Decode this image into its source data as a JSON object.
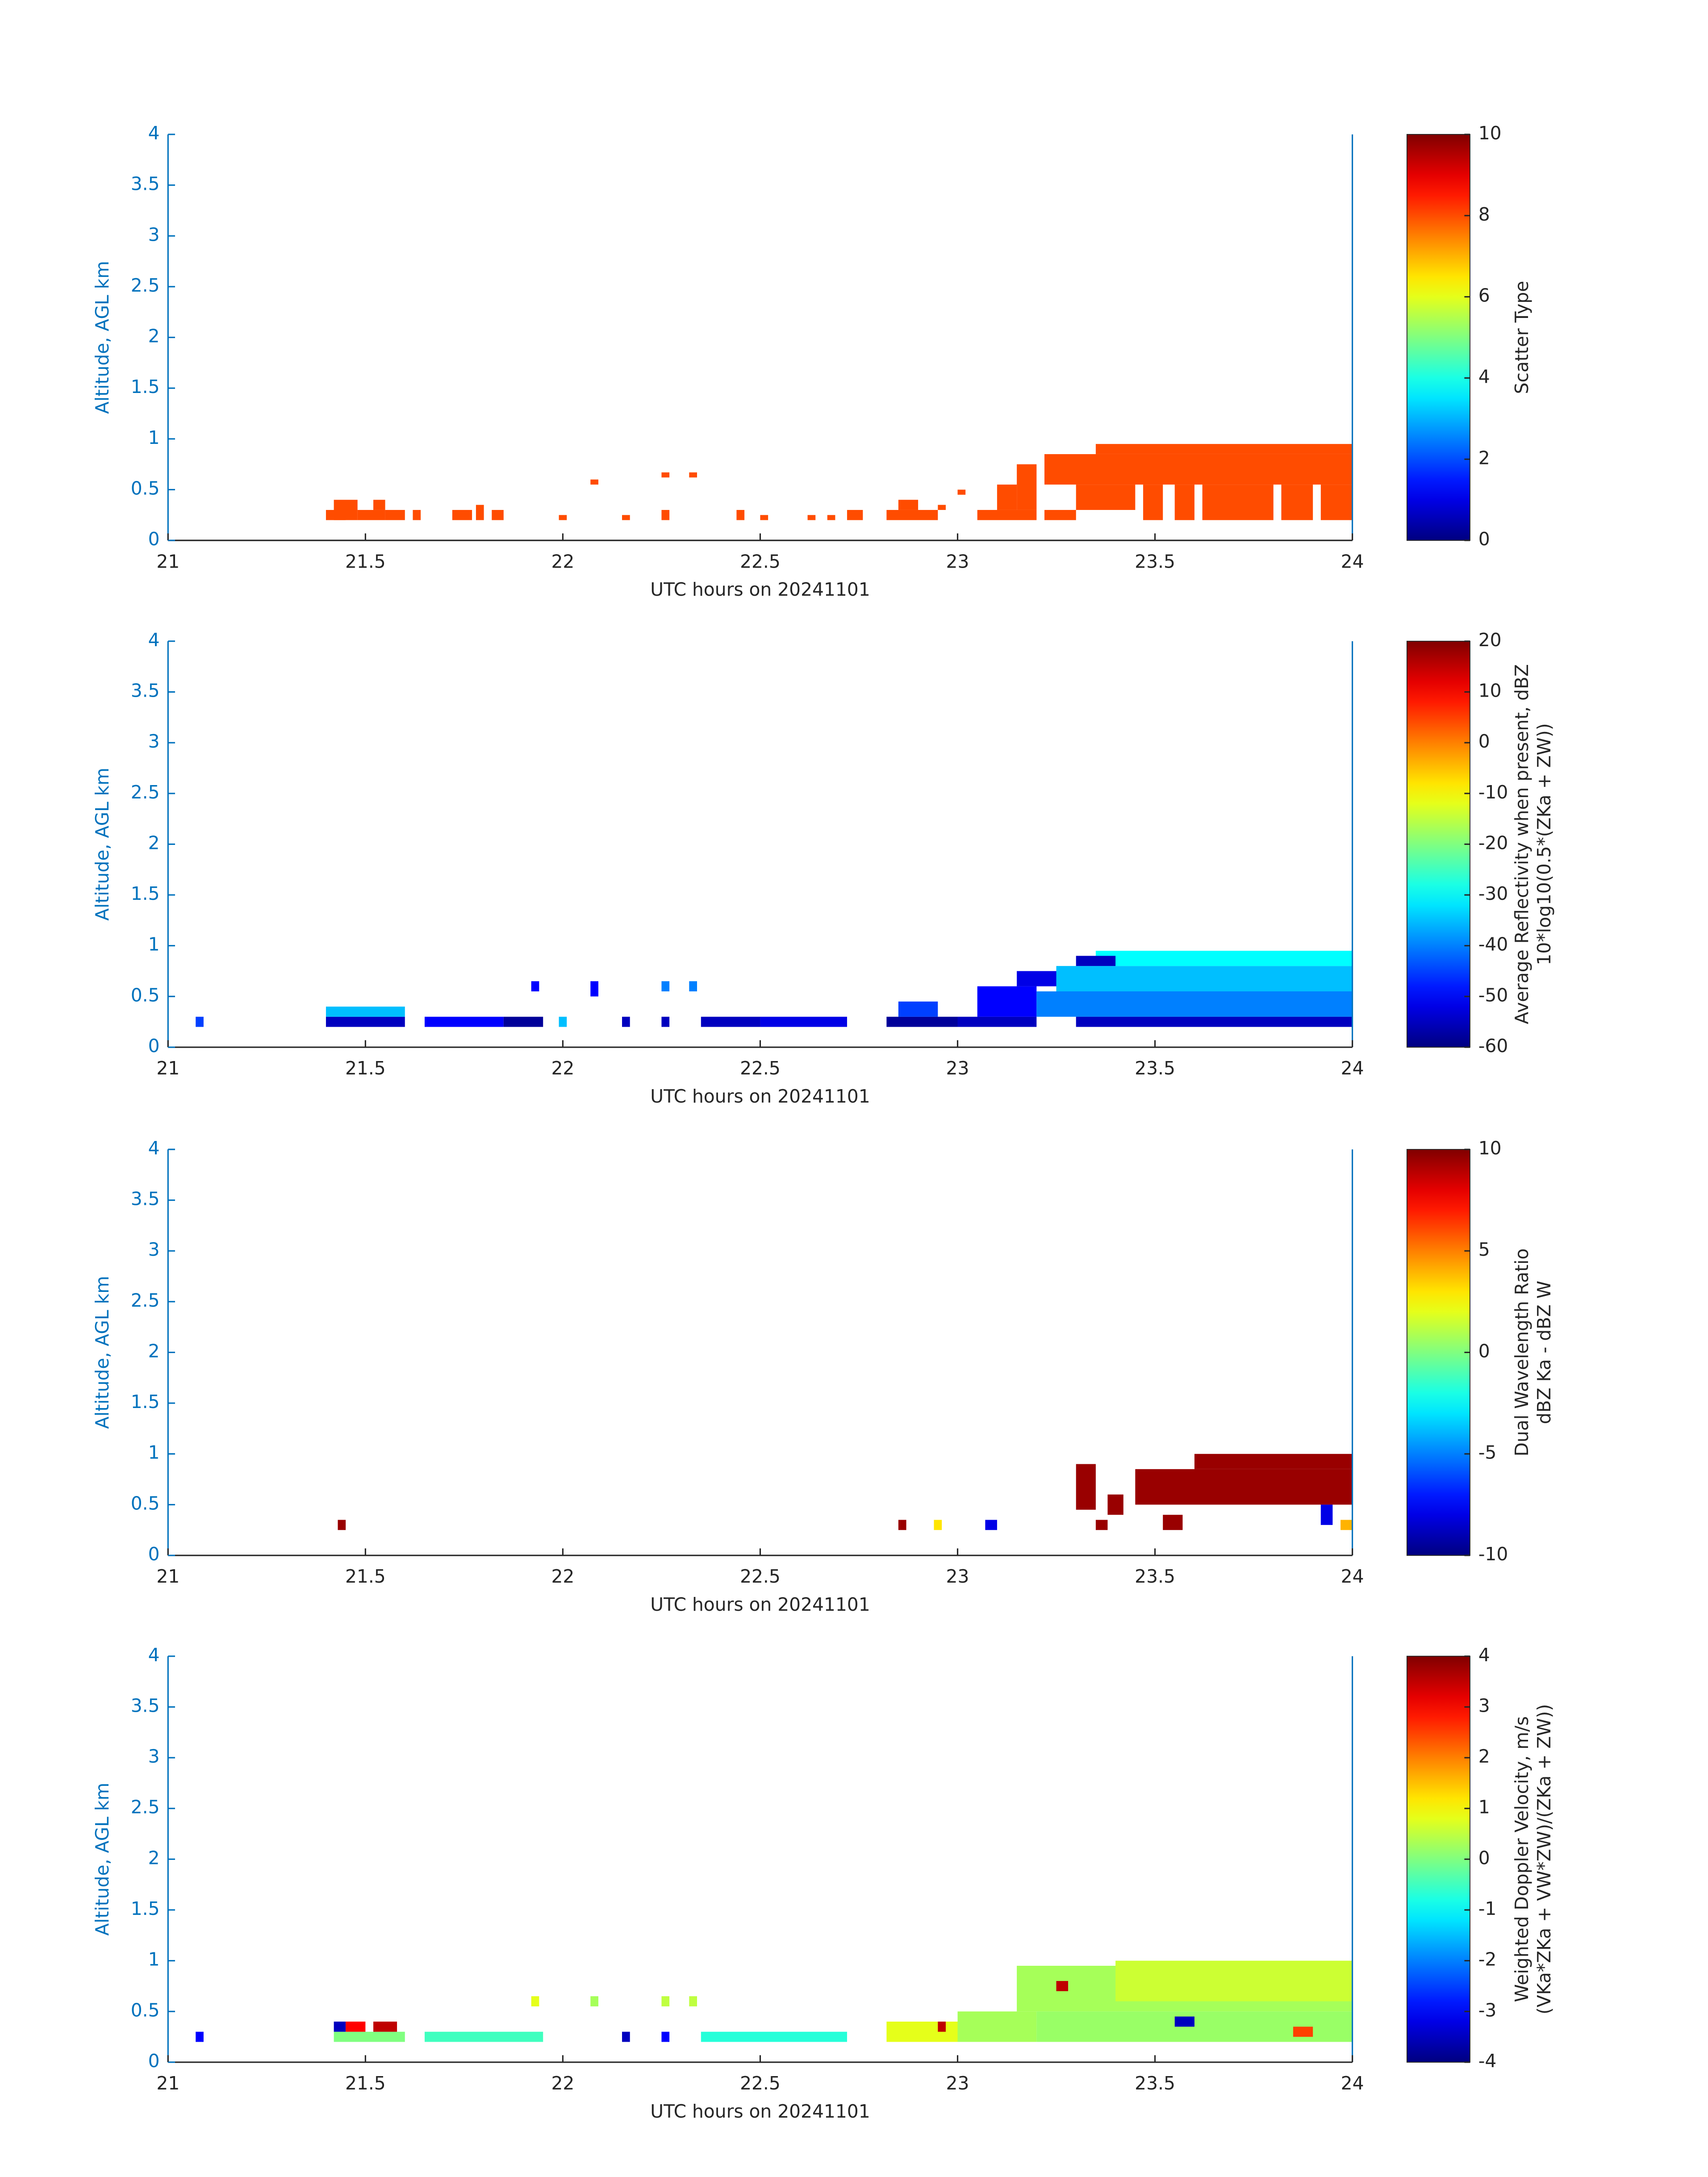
{
  "chart_data": [
    {
      "type": "heatmap",
      "colormap": "jet",
      "xlabel": "UTC hours on 20241101",
      "ylabel": "Altitude, AGL km",
      "xlim": [
        21,
        24
      ],
      "xticks": [
        21,
        21.5,
        22,
        22.5,
        23,
        23.5,
        24
      ],
      "ylim": [
        0,
        4
      ],
      "yticks": [
        0,
        0.5,
        1,
        1.5,
        2,
        2.5,
        3,
        3.5,
        4
      ],
      "clim": [
        0,
        10
      ],
      "cticks": [
        0,
        2,
        4,
        6,
        8,
        10
      ],
      "clabel": [
        "Scatter Type"
      ],
      "x": [
        [
          21.4,
          21.45
        ],
        [
          21.42,
          21.48
        ],
        [
          21.48,
          21.55
        ],
        [
          21.52,
          21.55
        ],
        [
          21.55,
          21.6
        ],
        [
          21.62,
          21.64
        ],
        [
          21.72,
          21.77
        ],
        [
          21.78,
          21.8
        ],
        [
          21.82,
          21.85
        ],
        [
          21.99,
          22.01
        ],
        [
          22.07,
          22.09
        ],
        [
          22.15,
          22.17
        ],
        [
          22.25,
          22.27
        ],
        [
          22.25,
          22.27
        ],
        [
          22.32,
          22.34
        ],
        [
          22.44,
          22.46
        ],
        [
          22.5,
          22.52
        ],
        [
          22.62,
          22.64
        ],
        [
          22.67,
          22.69
        ],
        [
          22.72,
          22.76
        ],
        [
          22.82,
          22.95
        ],
        [
          22.85,
          22.9
        ],
        [
          22.95,
          22.97
        ],
        [
          23.0,
          23.02
        ],
        [
          23.05,
          23.2
        ],
        [
          23.1,
          23.15
        ],
        [
          23.15,
          23.2
        ],
        [
          23.22,
          23.3
        ],
        [
          23.22,
          24
        ],
        [
          23.35,
          24
        ],
        [
          23.3,
          23.45
        ],
        [
          23.47,
          23.52
        ],
        [
          23.55,
          23.6
        ],
        [
          23.62,
          23.8
        ],
        [
          23.82,
          23.9
        ],
        [
          23.92,
          24
        ]
      ],
      "y": [
        [
          0.2,
          0.3
        ],
        [
          0.2,
          0.4
        ],
        [
          0.2,
          0.3
        ],
        [
          0.3,
          0.4
        ],
        [
          0.2,
          0.3
        ],
        [
          0.2,
          0.3
        ],
        [
          0.2,
          0.3
        ],
        [
          0.2,
          0.35
        ],
        [
          0.2,
          0.3
        ],
        [
          0.2,
          0.25
        ],
        [
          0.55,
          0.6
        ],
        [
          0.2,
          0.25
        ],
        [
          0.2,
          0.3
        ],
        [
          0.62,
          0.67
        ],
        [
          0.62,
          0.67
        ],
        [
          0.2,
          0.3
        ],
        [
          0.2,
          0.25
        ],
        [
          0.2,
          0.25
        ],
        [
          0.2,
          0.25
        ],
        [
          0.2,
          0.3
        ],
        [
          0.2,
          0.3
        ],
        [
          0.3,
          0.4
        ],
        [
          0.3,
          0.35
        ],
        [
          0.45,
          0.5
        ],
        [
          0.2,
          0.3
        ],
        [
          0.3,
          0.55
        ],
        [
          0.3,
          0.75
        ],
        [
          0.2,
          0.3
        ],
        [
          0.55,
          0.85
        ],
        [
          0.85,
          0.95
        ],
        [
          0.3,
          0.55
        ],
        [
          0.2,
          0.55
        ],
        [
          0.2,
          0.55
        ],
        [
          0.2,
          0.55
        ],
        [
          0.2,
          0.55
        ],
        [
          0.2,
          0.55
        ]
      ],
      "values": [
        8,
        8,
        8,
        8,
        8,
        8,
        8,
        8,
        8,
        8,
        8,
        8,
        8,
        8,
        8,
        8,
        8,
        8,
        8,
        8,
        8,
        8,
        8,
        8,
        8,
        8,
        8,
        8,
        8,
        8,
        8,
        8,
        8,
        8,
        8,
        8
      ]
    },
    {
      "type": "heatmap",
      "colormap": "jet",
      "xlabel": "UTC hours on 20241101",
      "ylabel": "Altitude, AGL km",
      "xlim": [
        21,
        24
      ],
      "xticks": [
        21,
        21.5,
        22,
        22.5,
        23,
        23.5,
        24
      ],
      "ylim": [
        0,
        4
      ],
      "yticks": [
        0,
        0.5,
        1,
        1.5,
        2,
        2.5,
        3,
        3.5,
        4
      ],
      "clim": [
        -60,
        20
      ],
      "cticks": [
        -60,
        -50,
        -40,
        -30,
        -20,
        -10,
        0,
        10,
        20
      ],
      "clabel": [
        "Average Reflectivity when present, dBZ",
        "10*log10(0.5*(ZKa + ZW))"
      ],
      "x": [
        [
          21.07,
          21.09
        ],
        [
          21.4,
          21.6
        ],
        [
          21.4,
          21.6
        ],
        [
          21.65,
          21.85
        ],
        [
          21.85,
          21.95
        ],
        [
          21.92,
          21.94
        ],
        [
          21.99,
          22.01
        ],
        [
          22.07,
          22.09
        ],
        [
          22.15,
          22.17
        ],
        [
          22.25,
          22.27
        ],
        [
          22.25,
          22.27
        ],
        [
          22.32,
          22.34
        ],
        [
          22.35,
          22.5
        ],
        [
          22.5,
          22.72
        ],
        [
          22.82,
          23.0
        ],
        [
          22.85,
          22.95
        ],
        [
          23.0,
          23.2
        ],
        [
          23.05,
          23.2
        ],
        [
          23.15,
          23.3
        ],
        [
          23.2,
          24
        ],
        [
          23.25,
          24
        ],
        [
          23.35,
          24
        ],
        [
          23.3,
          24
        ],
        [
          23.3,
          23.4
        ]
      ],
      "y": [
        [
          0.2,
          0.3
        ],
        [
          0.2,
          0.3
        ],
        [
          0.3,
          0.4
        ],
        [
          0.2,
          0.3
        ],
        [
          0.2,
          0.3
        ],
        [
          0.55,
          0.65
        ],
        [
          0.2,
          0.3
        ],
        [
          0.5,
          0.65
        ],
        [
          0.2,
          0.3
        ],
        [
          0.2,
          0.3
        ],
        [
          0.55,
          0.65
        ],
        [
          0.55,
          0.65
        ],
        [
          0.2,
          0.3
        ],
        [
          0.2,
          0.3
        ],
        [
          0.2,
          0.3
        ],
        [
          0.3,
          0.45
        ],
        [
          0.2,
          0.3
        ],
        [
          0.3,
          0.6
        ],
        [
          0.6,
          0.75
        ],
        [
          0.3,
          0.55
        ],
        [
          0.55,
          0.8
        ],
        [
          0.8,
          0.95
        ],
        [
          0.2,
          0.3
        ],
        [
          0.8,
          0.9
        ]
      ],
      "values": [
        -45,
        -55,
        -35,
        -50,
        -58,
        -50,
        -35,
        -50,
        -55,
        -55,
        -40,
        -40,
        -55,
        -52,
        -58,
        -45,
        -55,
        -50,
        -52,
        -40,
        -35,
        -30,
        -55,
        -55
      ]
    },
    {
      "type": "heatmap",
      "colormap": "jet",
      "xlabel": "UTC hours on 20241101",
      "ylabel": "Altitude, AGL km",
      "xlim": [
        21,
        24
      ],
      "xticks": [
        21,
        21.5,
        22,
        22.5,
        23,
        23.5,
        24
      ],
      "ylim": [
        0,
        4
      ],
      "yticks": [
        0,
        0.5,
        1,
        1.5,
        2,
        2.5,
        3,
        3.5,
        4
      ],
      "clim": [
        -10,
        10
      ],
      "cticks": [
        -10,
        -5,
        0,
        5,
        10
      ],
      "clabel": [
        "Dual Wavelength Ratio",
        "dBZ Ka - dBZ W"
      ],
      "x": [
        [
          21.43,
          21.45
        ],
        [
          22.85,
          22.87
        ],
        [
          22.94,
          22.96
        ],
        [
          23.07,
          23.1
        ],
        [
          23.3,
          23.35
        ],
        [
          23.38,
          23.42
        ],
        [
          23.45,
          24
        ],
        [
          23.6,
          24
        ],
        [
          23.35,
          23.38
        ],
        [
          23.52,
          23.57
        ],
        [
          23.92,
          23.95
        ],
        [
          23.97,
          24
        ]
      ],
      "y": [
        [
          0.25,
          0.35
        ],
        [
          0.25,
          0.35
        ],
        [
          0.25,
          0.35
        ],
        [
          0.25,
          0.35
        ],
        [
          0.45,
          0.9
        ],
        [
          0.4,
          0.6
        ],
        [
          0.5,
          0.85
        ],
        [
          0.85,
          1.0
        ],
        [
          0.25,
          0.35
        ],
        [
          0.25,
          0.4
        ],
        [
          0.3,
          0.5
        ],
        [
          0.25,
          0.35
        ]
      ],
      "values": [
        9.5,
        9.5,
        3,
        -8,
        9.5,
        9.5,
        9.5,
        9.5,
        9.5,
        9.5,
        -8,
        4
      ]
    },
    {
      "type": "heatmap",
      "colormap": "jet",
      "xlabel": "UTC hours on 20241101",
      "ylabel": "Altitude, AGL km",
      "xlim": [
        21,
        24
      ],
      "xticks": [
        21,
        21.5,
        22,
        22.5,
        23,
        23.5,
        24
      ],
      "ylim": [
        0,
        4
      ],
      "yticks": [
        0,
        0.5,
        1,
        1.5,
        2,
        2.5,
        3,
        3.5,
        4
      ],
      "clim": [
        -4,
        4
      ],
      "cticks": [
        -4,
        -3,
        -2,
        -1,
        0,
        1,
        2,
        3,
        4
      ],
      "clabel": [
        "Weighted Doppler Velocity, m/s",
        "(VKa*ZKa + VW*ZW)/(ZKa + ZW))"
      ],
      "x": [
        [
          21.07,
          21.09
        ],
        [
          21.42,
          21.6
        ],
        [
          21.42,
          21.45
        ],
        [
          21.45,
          21.5
        ],
        [
          21.52,
          21.58
        ],
        [
          21.65,
          21.95
        ],
        [
          21.92,
          21.94
        ],
        [
          22.07,
          22.09
        ],
        [
          22.15,
          22.17
        ],
        [
          22.25,
          22.27
        ],
        [
          22.25,
          22.27
        ],
        [
          22.32,
          22.34
        ],
        [
          22.35,
          22.72
        ],
        [
          22.82,
          23.0
        ],
        [
          22.95,
          22.97
        ],
        [
          23.0,
          23.2
        ],
        [
          23.15,
          24
        ],
        [
          23.4,
          24
        ],
        [
          23.2,
          24
        ],
        [
          23.25,
          23.28
        ],
        [
          23.55,
          23.6
        ],
        [
          23.85,
          23.9
        ]
      ],
      "y": [
        [
          0.2,
          0.3
        ],
        [
          0.2,
          0.3
        ],
        [
          0.3,
          0.4
        ],
        [
          0.3,
          0.4
        ],
        [
          0.3,
          0.4
        ],
        [
          0.2,
          0.3
        ],
        [
          0.55,
          0.65
        ],
        [
          0.55,
          0.65
        ],
        [
          0.2,
          0.3
        ],
        [
          0.2,
          0.3
        ],
        [
          0.55,
          0.65
        ],
        [
          0.55,
          0.65
        ],
        [
          0.2,
          0.3
        ],
        [
          0.2,
          0.4
        ],
        [
          0.3,
          0.4
        ],
        [
          0.2,
          0.5
        ],
        [
          0.5,
          0.95
        ],
        [
          0.6,
          1.0
        ],
        [
          0.2,
          0.5
        ],
        [
          0.7,
          0.8
        ],
        [
          0.35,
          0.45
        ],
        [
          0.25,
          0.35
        ]
      ],
      "values": [
        -3,
        0,
        -3.5,
        3,
        3.5,
        -0.5,
        0.8,
        0.3,
        -3.5,
        -3,
        0.5,
        0.5,
        -0.7,
        0.8,
        3.5,
        0.3,
        0.3,
        0.6,
        0.2,
        3.5,
        -3.5,
        2.5
      ]
    }
  ]
}
